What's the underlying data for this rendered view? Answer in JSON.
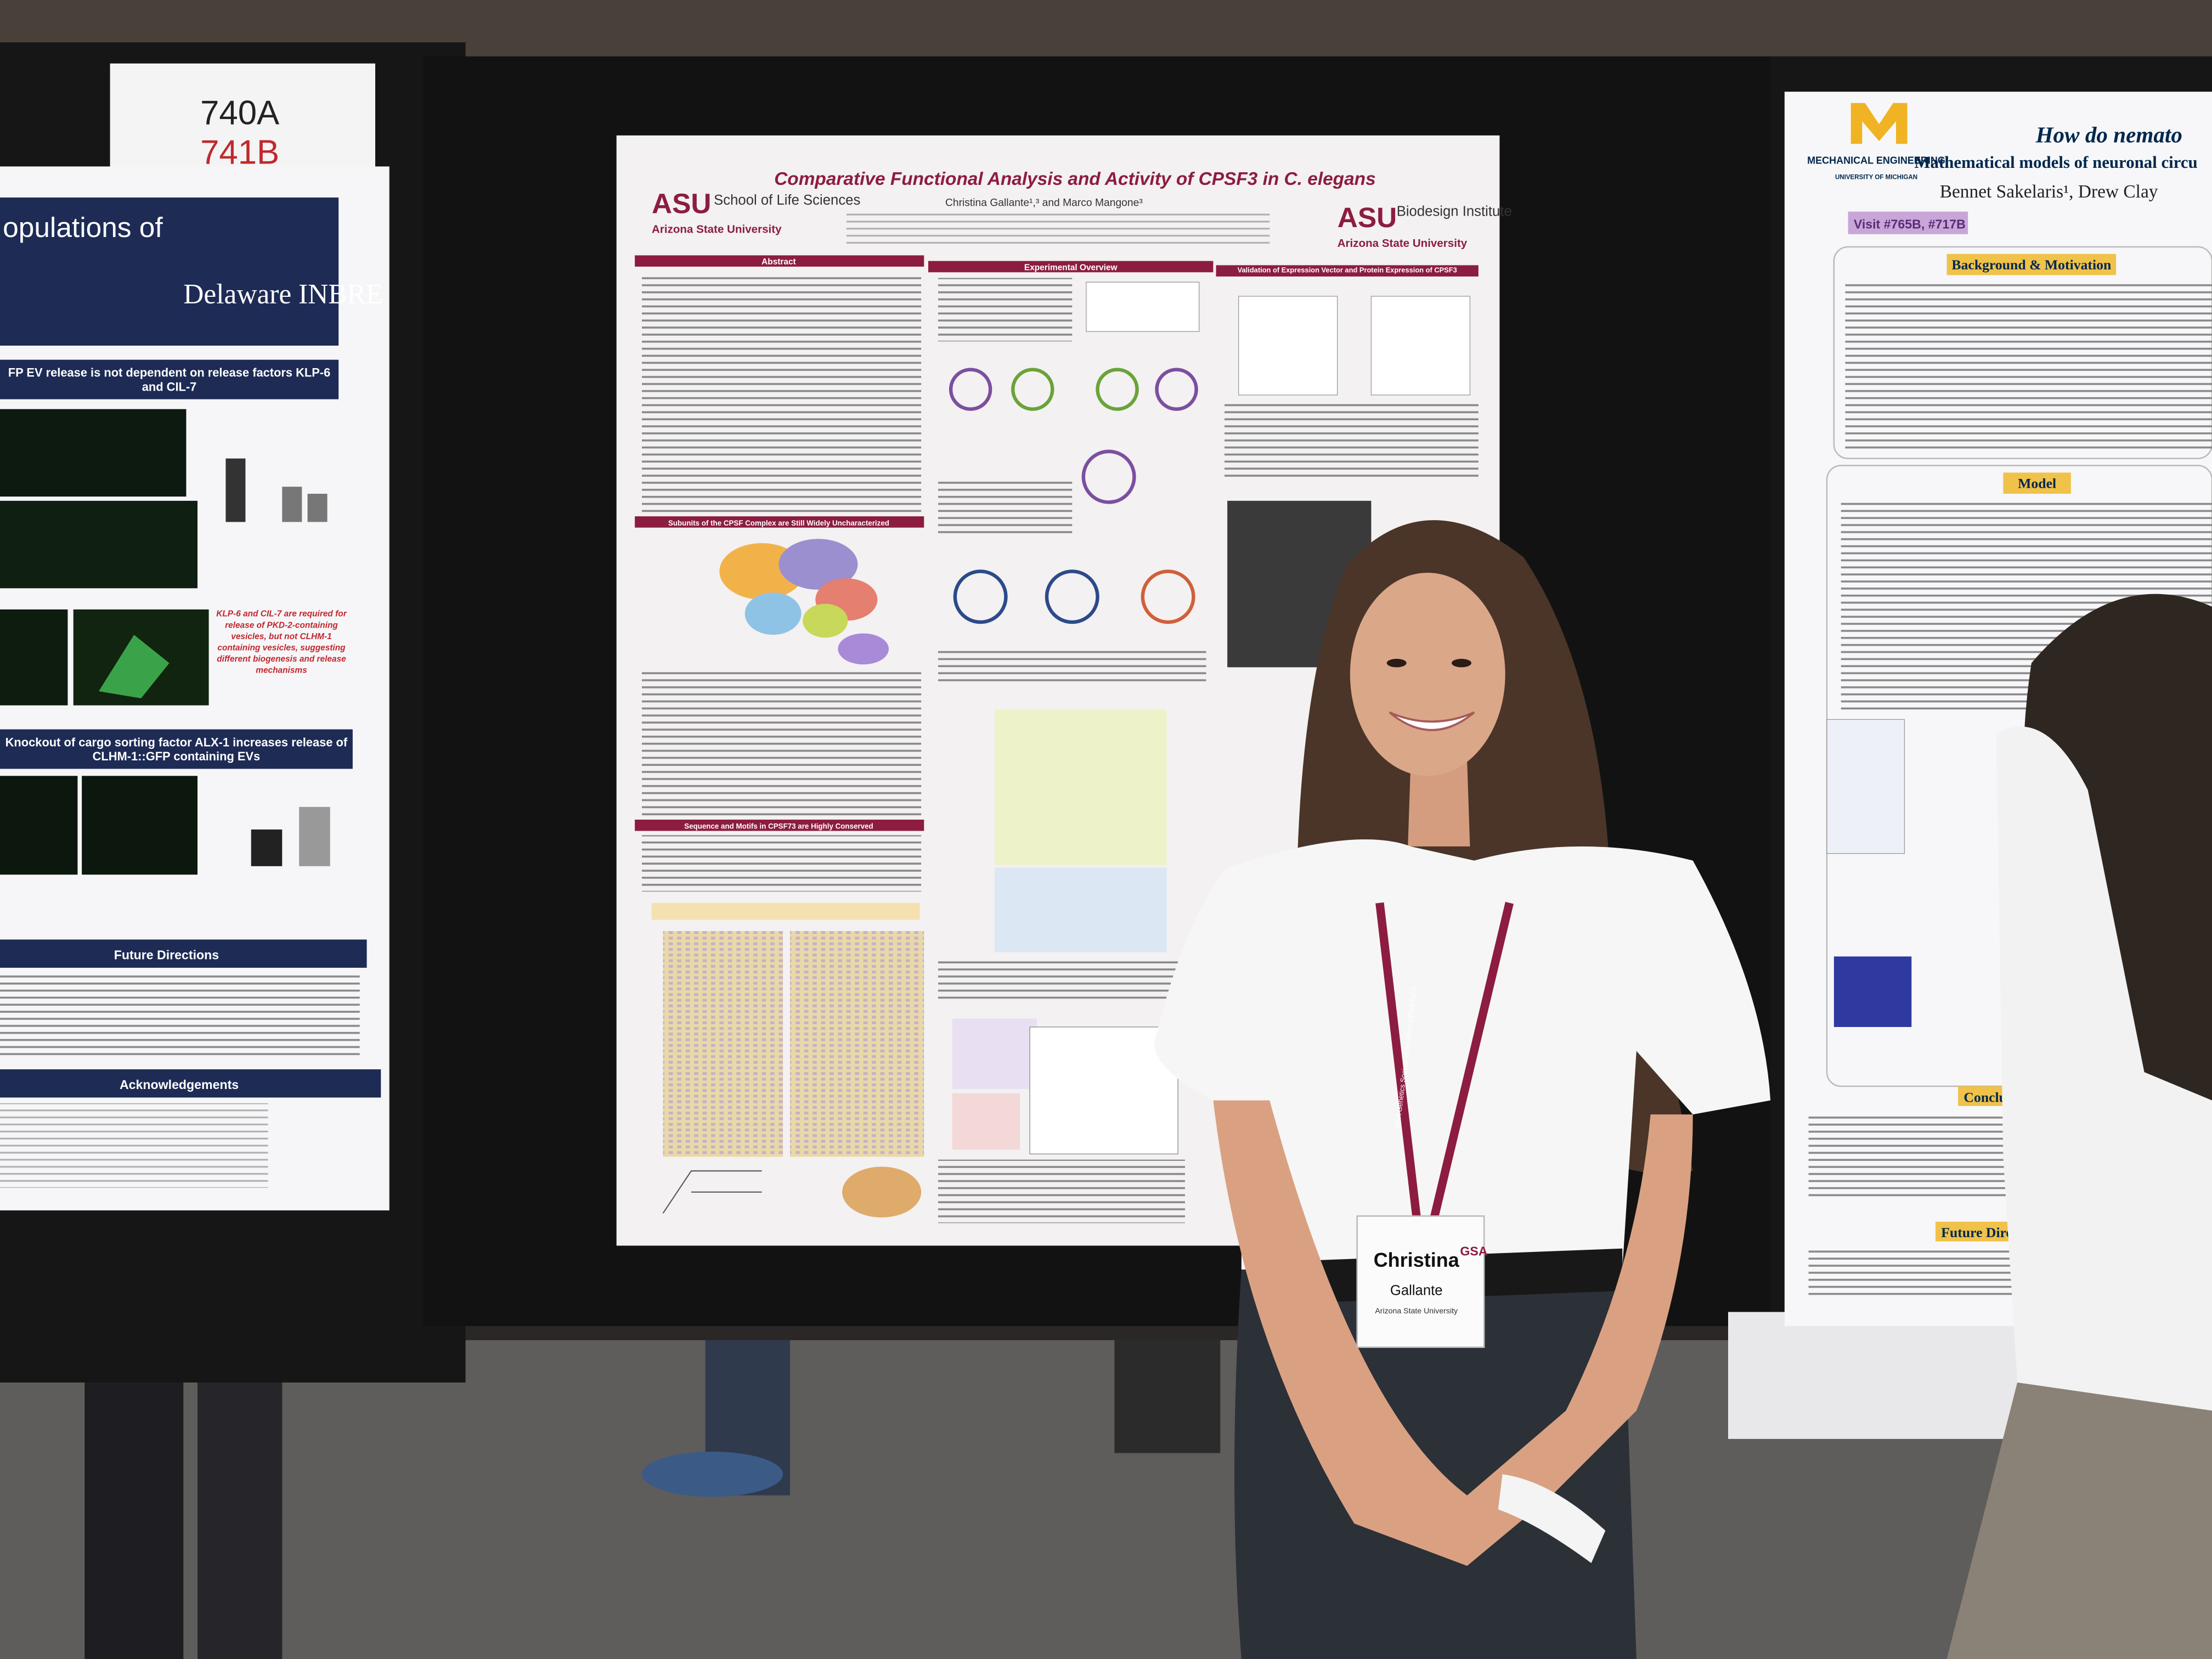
{
  "booth_sign": {
    "line1": "740A",
    "line2": "741B"
  },
  "left_poster": {
    "title_fragment": "opulations of",
    "logo": "Delaware INBRE",
    "sections": [
      "FP EV release is not dependent on release factors KLP-6 and CIL-7",
      "Knockout of cargo sorting factor ALX-1 increases release of CLHM-1::GFP containing EVs",
      "Future Directions",
      "Acknowledgements"
    ],
    "callout": "KLP-6 and CIL-7 are required for release of PKD-2-containing vesicles, but not CLHM-1 containing vesicles, suggesting different biogenesis and release mechanisms"
  },
  "center_poster": {
    "title": "Comparative Functional Analysis and Activity of CPSF3 in C. elegans",
    "authors": "Christina Gallante¹,³ and Marco Mangone³",
    "logo_left": {
      "mark": "ASU",
      "unit": "School of Life Sciences",
      "university": "Arizona State University"
    },
    "logo_right": {
      "mark": "ASU",
      "unit": "Biodesign Institute",
      "university": "Arizona State University"
    },
    "sections": {
      "abstract": "Abstract",
      "overview": "Experimental Overview",
      "validation": "Validation of Expression Vector and Protein Expression of CPSF3",
      "subunits": "Subunits of the CPSF Complex are Still Widely Uncharacterized",
      "sequence": "Sequence and Motifs in CPSF73 are Highly Conserved"
    }
  },
  "right_poster": {
    "department": "MECHANICAL ENGINEERING",
    "university": "UNIVERSITY OF MICHIGAN",
    "title": "How do nemato",
    "subtitle": "Mathematical models of neuronal circu",
    "authors": "Bennet Sakelaris¹, Drew Clay",
    "visit": "Visit #765B, #717B",
    "sections": [
      "Background & Motivation",
      "Model",
      "Conclus",
      "Future Direc"
    ]
  },
  "badge": {
    "first_name": "Christina",
    "last_name": "Gallante",
    "affiliation": "Arizona State University",
    "org": "GSA"
  },
  "lanyard": "GSA Genetics Society of America GENETICS"
}
